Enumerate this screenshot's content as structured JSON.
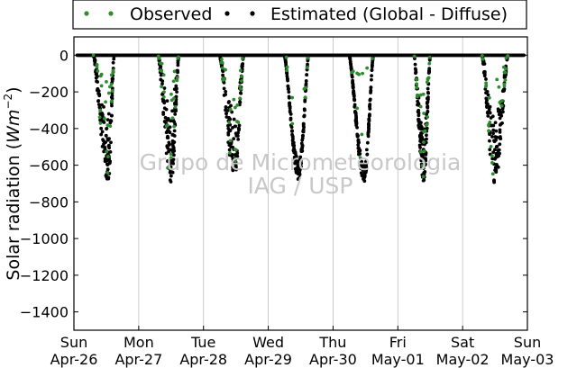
{
  "chart_data": {
    "type": "scatter",
    "xlabel": "",
    "ylabel": "Solar radiation (Wm^-2)",
    "ylabel_parts": {
      "prefix": "Solar radiation (",
      "unit": "Wm",
      "exponent": "−2",
      "suffix": ")"
    },
    "ylim": [
      -1500,
      100
    ],
    "xlim": [
      0,
      7
    ],
    "grid": "vertical",
    "legend_position": "top",
    "yticks": [
      0,
      -200,
      -400,
      -600,
      -800,
      -1000,
      -1200,
      -1400
    ],
    "ytick_labels": [
      "0",
      "−200",
      "−400",
      "−600",
      "−800",
      "−1000",
      "−1200",
      "−1400"
    ],
    "xticks": [
      {
        "day": "Sun",
        "date": "Apr-26"
      },
      {
        "day": "Mon",
        "date": "Apr-27"
      },
      {
        "day": "Tue",
        "date": "Apr-28"
      },
      {
        "day": "Wed",
        "date": "Apr-29"
      },
      {
        "day": "Thu",
        "date": "Apr-30"
      },
      {
        "day": "Fri",
        "date": "May-01"
      },
      {
        "day": "Sat",
        "date": "May-02"
      },
      {
        "day": "Sun",
        "date": "May-03"
      }
    ],
    "series": [
      {
        "name": "Observed",
        "color": "#2e8b2e"
      },
      {
        "name": "Estimated (Global - Diffuse)",
        "color": "#000000"
      }
    ],
    "daily_profile": [
      {
        "date": "Apr-26",
        "start": 0.3,
        "end": 0.62,
        "peak_time": 0.53,
        "min": -700,
        "cloudy": true,
        "hi": 0.4
      },
      {
        "date": "Apr-27",
        "start": 1.3,
        "end": 1.62,
        "peak_time": 1.5,
        "min": -700,
        "cloudy": true,
        "hi": 0.35
      },
      {
        "date": "Apr-28",
        "start": 2.25,
        "end": 2.62,
        "peak_time": 2.48,
        "min": -670,
        "cloudy": true,
        "hi": 0.45
      },
      {
        "date": "Apr-29",
        "start": 3.25,
        "end": 3.62,
        "peak_time": 3.47,
        "min": -680,
        "cloudy": false,
        "hi": 0.3
      },
      {
        "date": "Apr-30",
        "start": 4.25,
        "end": 4.62,
        "peak_time": 4.48,
        "min": -690,
        "cloudy": false,
        "hi": 0.1
      },
      {
        "date": "May-01",
        "start": 5.25,
        "end": 5.5,
        "peak_time": 5.4,
        "min": -690,
        "cloudy": true,
        "hi": 0.55
      },
      {
        "date": "May-02",
        "start": 6.3,
        "end": 6.7,
        "peak_time": 6.5,
        "min": -700,
        "cloudy": true,
        "hi": 0.35
      }
    ]
  },
  "watermark": {
    "line1": "Grupo de Micrometeorologia",
    "line2": "IAG / USP"
  }
}
